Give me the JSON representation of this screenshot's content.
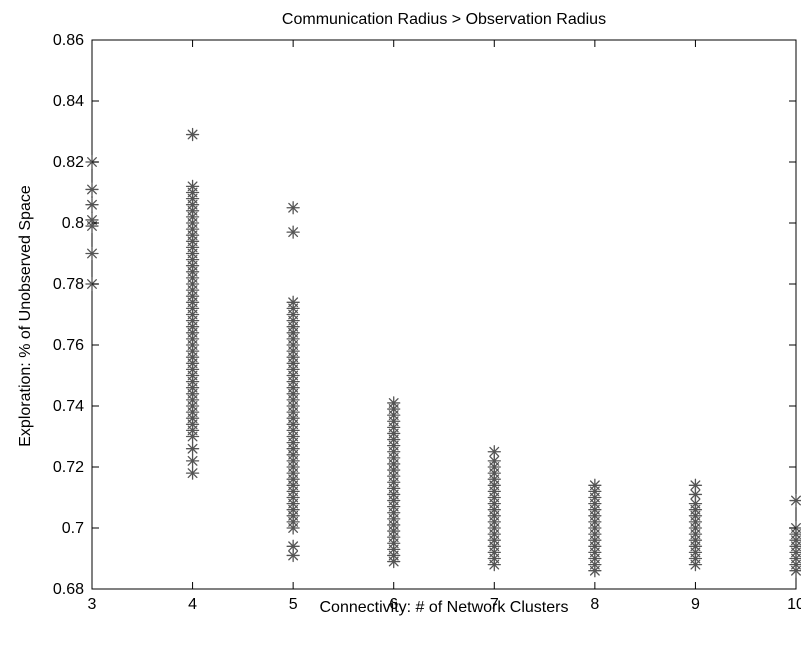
{
  "chart_data": {
    "type": "scatter",
    "title": "Communication Radius > Observation Radius",
    "xlabel": "Connectivity: # of Network Clusters",
    "ylabel": "Exploration: % of Unobserved Space",
    "xlim": [
      3,
      10
    ],
    "ylim": [
      0.68,
      0.86
    ],
    "xticks": [
      3,
      4,
      5,
      6,
      7,
      8,
      9,
      10
    ],
    "yticks": [
      0.68,
      0.7,
      0.72,
      0.74,
      0.76,
      0.78,
      0.8,
      0.82,
      0.84,
      0.86
    ],
    "xtick_labels": [
      "3",
      "4",
      "5",
      "6",
      "7",
      "8",
      "9",
      "10"
    ],
    "ytick_labels": [
      "0.68",
      "0.7",
      "0.72",
      "0.74",
      "0.76",
      "0.78",
      "0.8",
      "0.82",
      "0.84",
      "0.86"
    ],
    "marker": "asterisk",
    "marker_color": "#555555",
    "grid": false,
    "legend": "none",
    "series": [
      {
        "points": [
          [
            3,
            0.82
          ],
          [
            3,
            0.811
          ],
          [
            3,
            0.806
          ],
          [
            3,
            0.801
          ],
          [
            3,
            0.799
          ],
          [
            3,
            0.79
          ],
          [
            3,
            0.78
          ],
          [
            4,
            0.829
          ],
          [
            4,
            0.812
          ],
          [
            4,
            0.81
          ],
          [
            4,
            0.808
          ],
          [
            4,
            0.806
          ],
          [
            4,
            0.804
          ],
          [
            4,
            0.802
          ],
          [
            4,
            0.8
          ],
          [
            4,
            0.798
          ],
          [
            4,
            0.796
          ],
          [
            4,
            0.794
          ],
          [
            4,
            0.792
          ],
          [
            4,
            0.79
          ],
          [
            4,
            0.788
          ],
          [
            4,
            0.786
          ],
          [
            4,
            0.784
          ],
          [
            4,
            0.782
          ],
          [
            4,
            0.78
          ],
          [
            4,
            0.778
          ],
          [
            4,
            0.776
          ],
          [
            4,
            0.774
          ],
          [
            4,
            0.772
          ],
          [
            4,
            0.77
          ],
          [
            4,
            0.768
          ],
          [
            4,
            0.766
          ],
          [
            4,
            0.764
          ],
          [
            4,
            0.762
          ],
          [
            4,
            0.76
          ],
          [
            4,
            0.758
          ],
          [
            4,
            0.756
          ],
          [
            4,
            0.754
          ],
          [
            4,
            0.752
          ],
          [
            4,
            0.75
          ],
          [
            4,
            0.748
          ],
          [
            4,
            0.746
          ],
          [
            4,
            0.744
          ],
          [
            4,
            0.742
          ],
          [
            4,
            0.74
          ],
          [
            4,
            0.738
          ],
          [
            4,
            0.736
          ],
          [
            4,
            0.734
          ],
          [
            4,
            0.732
          ],
          [
            4,
            0.73
          ],
          [
            4,
            0.726
          ],
          [
            4,
            0.722
          ],
          [
            4,
            0.718
          ],
          [
            5,
            0.805
          ],
          [
            5,
            0.797
          ],
          [
            5,
            0.774
          ],
          [
            5,
            0.772
          ],
          [
            5,
            0.77
          ],
          [
            5,
            0.768
          ],
          [
            5,
            0.766
          ],
          [
            5,
            0.764
          ],
          [
            5,
            0.762
          ],
          [
            5,
            0.76
          ],
          [
            5,
            0.758
          ],
          [
            5,
            0.756
          ],
          [
            5,
            0.754
          ],
          [
            5,
            0.752
          ],
          [
            5,
            0.75
          ],
          [
            5,
            0.748
          ],
          [
            5,
            0.746
          ],
          [
            5,
            0.744
          ],
          [
            5,
            0.742
          ],
          [
            5,
            0.74
          ],
          [
            5,
            0.738
          ],
          [
            5,
            0.736
          ],
          [
            5,
            0.734
          ],
          [
            5,
            0.732
          ],
          [
            5,
            0.73
          ],
          [
            5,
            0.728
          ],
          [
            5,
            0.726
          ],
          [
            5,
            0.724
          ],
          [
            5,
            0.722
          ],
          [
            5,
            0.72
          ],
          [
            5,
            0.718
          ],
          [
            5,
            0.716
          ],
          [
            5,
            0.714
          ],
          [
            5,
            0.712
          ],
          [
            5,
            0.71
          ],
          [
            5,
            0.708
          ],
          [
            5,
            0.706
          ],
          [
            5,
            0.704
          ],
          [
            5,
            0.702
          ],
          [
            5,
            0.7
          ],
          [
            5,
            0.694
          ],
          [
            5,
            0.691
          ],
          [
            6,
            0.741
          ],
          [
            6,
            0.739
          ],
          [
            6,
            0.737
          ],
          [
            6,
            0.735
          ],
          [
            6,
            0.733
          ],
          [
            6,
            0.731
          ],
          [
            6,
            0.729
          ],
          [
            6,
            0.727
          ],
          [
            6,
            0.725
          ],
          [
            6,
            0.723
          ],
          [
            6,
            0.721
          ],
          [
            6,
            0.719
          ],
          [
            6,
            0.717
          ],
          [
            6,
            0.715
          ],
          [
            6,
            0.713
          ],
          [
            6,
            0.711
          ],
          [
            6,
            0.709
          ],
          [
            6,
            0.707
          ],
          [
            6,
            0.705
          ],
          [
            6,
            0.703
          ],
          [
            6,
            0.701
          ],
          [
            6,
            0.699
          ],
          [
            6,
            0.697
          ],
          [
            6,
            0.695
          ],
          [
            6,
            0.693
          ],
          [
            6,
            0.691
          ],
          [
            6,
            0.689
          ],
          [
            7,
            0.725
          ],
          [
            7,
            0.722
          ],
          [
            7,
            0.72
          ],
          [
            7,
            0.718
          ],
          [
            7,
            0.716
          ],
          [
            7,
            0.714
          ],
          [
            7,
            0.712
          ],
          [
            7,
            0.71
          ],
          [
            7,
            0.708
          ],
          [
            7,
            0.706
          ],
          [
            7,
            0.704
          ],
          [
            7,
            0.702
          ],
          [
            7,
            0.7
          ],
          [
            7,
            0.698
          ],
          [
            7,
            0.696
          ],
          [
            7,
            0.694
          ],
          [
            7,
            0.692
          ],
          [
            7,
            0.69
          ],
          [
            7,
            0.688
          ],
          [
            8,
            0.714
          ],
          [
            8,
            0.712
          ],
          [
            8,
            0.71
          ],
          [
            8,
            0.708
          ],
          [
            8,
            0.706
          ],
          [
            8,
            0.704
          ],
          [
            8,
            0.702
          ],
          [
            8,
            0.7
          ],
          [
            8,
            0.698
          ],
          [
            8,
            0.696
          ],
          [
            8,
            0.694
          ],
          [
            8,
            0.692
          ],
          [
            8,
            0.69
          ],
          [
            8,
            0.688
          ],
          [
            8,
            0.686
          ],
          [
            9,
            0.714
          ],
          [
            9,
            0.711
          ],
          [
            9,
            0.708
          ],
          [
            9,
            0.706
          ],
          [
            9,
            0.704
          ],
          [
            9,
            0.702
          ],
          [
            9,
            0.7
          ],
          [
            9,
            0.698
          ],
          [
            9,
            0.696
          ],
          [
            9,
            0.694
          ],
          [
            9,
            0.692
          ],
          [
            9,
            0.69
          ],
          [
            9,
            0.688
          ],
          [
            10,
            0.709
          ],
          [
            10,
            0.7
          ],
          [
            10,
            0.698
          ],
          [
            10,
            0.696
          ],
          [
            10,
            0.694
          ],
          [
            10,
            0.692
          ],
          [
            10,
            0.69
          ],
          [
            10,
            0.688
          ],
          [
            10,
            0.686
          ]
        ]
      }
    ]
  }
}
